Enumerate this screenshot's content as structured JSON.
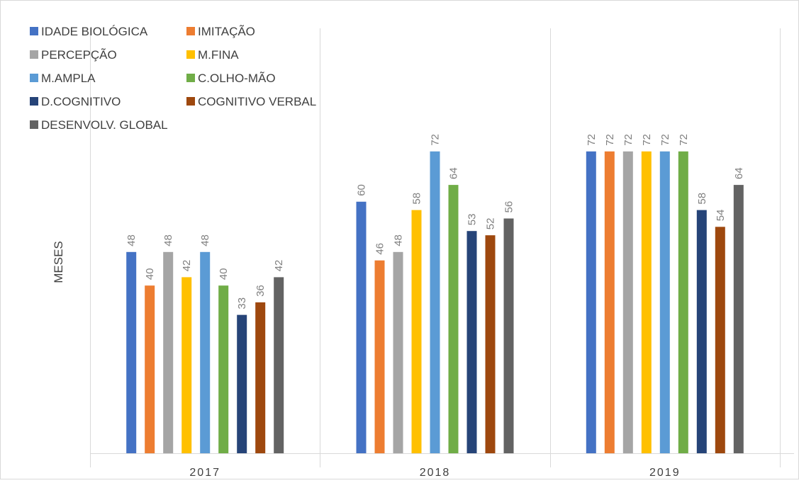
{
  "chart_data": {
    "type": "bar",
    "title": "",
    "xlabel": "",
    "ylabel": "MESES",
    "ylim": [
      0,
      90
    ],
    "grid": false,
    "legend_position": "top-left",
    "categories": [
      "2017",
      "2018",
      "2019"
    ],
    "series": [
      {
        "name": "IDADE BIOLÓGICA",
        "color": "#4472c4",
        "values": [
          48,
          60,
          72
        ]
      },
      {
        "name": "IMITAÇÃO",
        "color": "#ed7d31",
        "values": [
          40,
          46,
          72
        ]
      },
      {
        "name": "PERCEPÇÃO",
        "color": "#a5a5a5",
        "values": [
          48,
          48,
          72
        ]
      },
      {
        "name": "M.FINA",
        "color": "#ffc000",
        "values": [
          42,
          58,
          72
        ]
      },
      {
        "name": "M.AMPLA",
        "color": "#5b9bd5",
        "values": [
          48,
          72,
          72
        ]
      },
      {
        "name": "C.OLHO-MÃO",
        "color": "#70ad47",
        "values": [
          40,
          64,
          72
        ]
      },
      {
        "name": "D.COGNITIVO",
        "color": "#264478",
        "values": [
          33,
          53,
          58
        ]
      },
      {
        "name": "COGNITIVO VERBAL",
        "color": "#9e480e",
        "values": [
          36,
          52,
          54
        ]
      },
      {
        "name": "DESENVOLV. GLOBAL",
        "color": "#636363",
        "values": [
          42,
          56,
          64
        ]
      }
    ]
  }
}
